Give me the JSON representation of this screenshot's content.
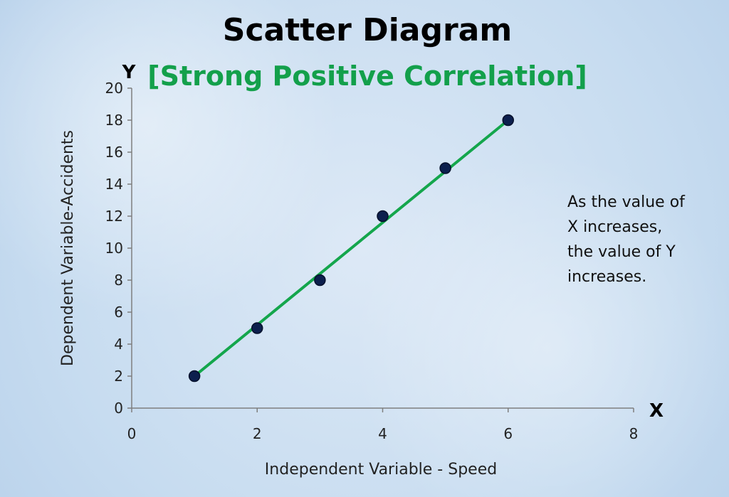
{
  "colors": {
    "title": "#000000",
    "subtitle": "#13a04b",
    "trendline": "#14a64c",
    "marker_fill": "#0c1f4d",
    "marker_stroke": "#05102b",
    "axis": "#7f7f7f",
    "text": "#222222"
  },
  "chart_data": {
    "type": "scatter",
    "title": "Scatter Diagram",
    "subtitle": "[Strong Positive Correlation]",
    "xlabel": "Independent Variable - Speed",
    "ylabel": "Dependent Variable-Accidents",
    "x_axis_letter": "X",
    "y_axis_letter": "Y",
    "xlim": [
      0,
      8
    ],
    "ylim": [
      0,
      20
    ],
    "x_ticks": [
      0,
      2,
      4,
      6,
      8
    ],
    "y_ticks": [
      0,
      2,
      4,
      6,
      8,
      10,
      12,
      14,
      16,
      18,
      20
    ],
    "grid": false,
    "series": [
      {
        "points": [
          {
            "x": 1,
            "y": 2
          },
          {
            "x": 2,
            "y": 5
          },
          {
            "x": 3,
            "y": 8
          },
          {
            "x": 4,
            "y": 12
          },
          {
            "x": 5,
            "y": 15
          },
          {
            "x": 6,
            "y": 18
          }
        ]
      }
    ],
    "trendline": {
      "from": {
        "x": 1,
        "y": 2
      },
      "to": {
        "x": 6,
        "y": 18
      }
    },
    "annotation_lines": [
      "As the value of",
      "X increases,",
      "the value of Y",
      "increases."
    ]
  }
}
